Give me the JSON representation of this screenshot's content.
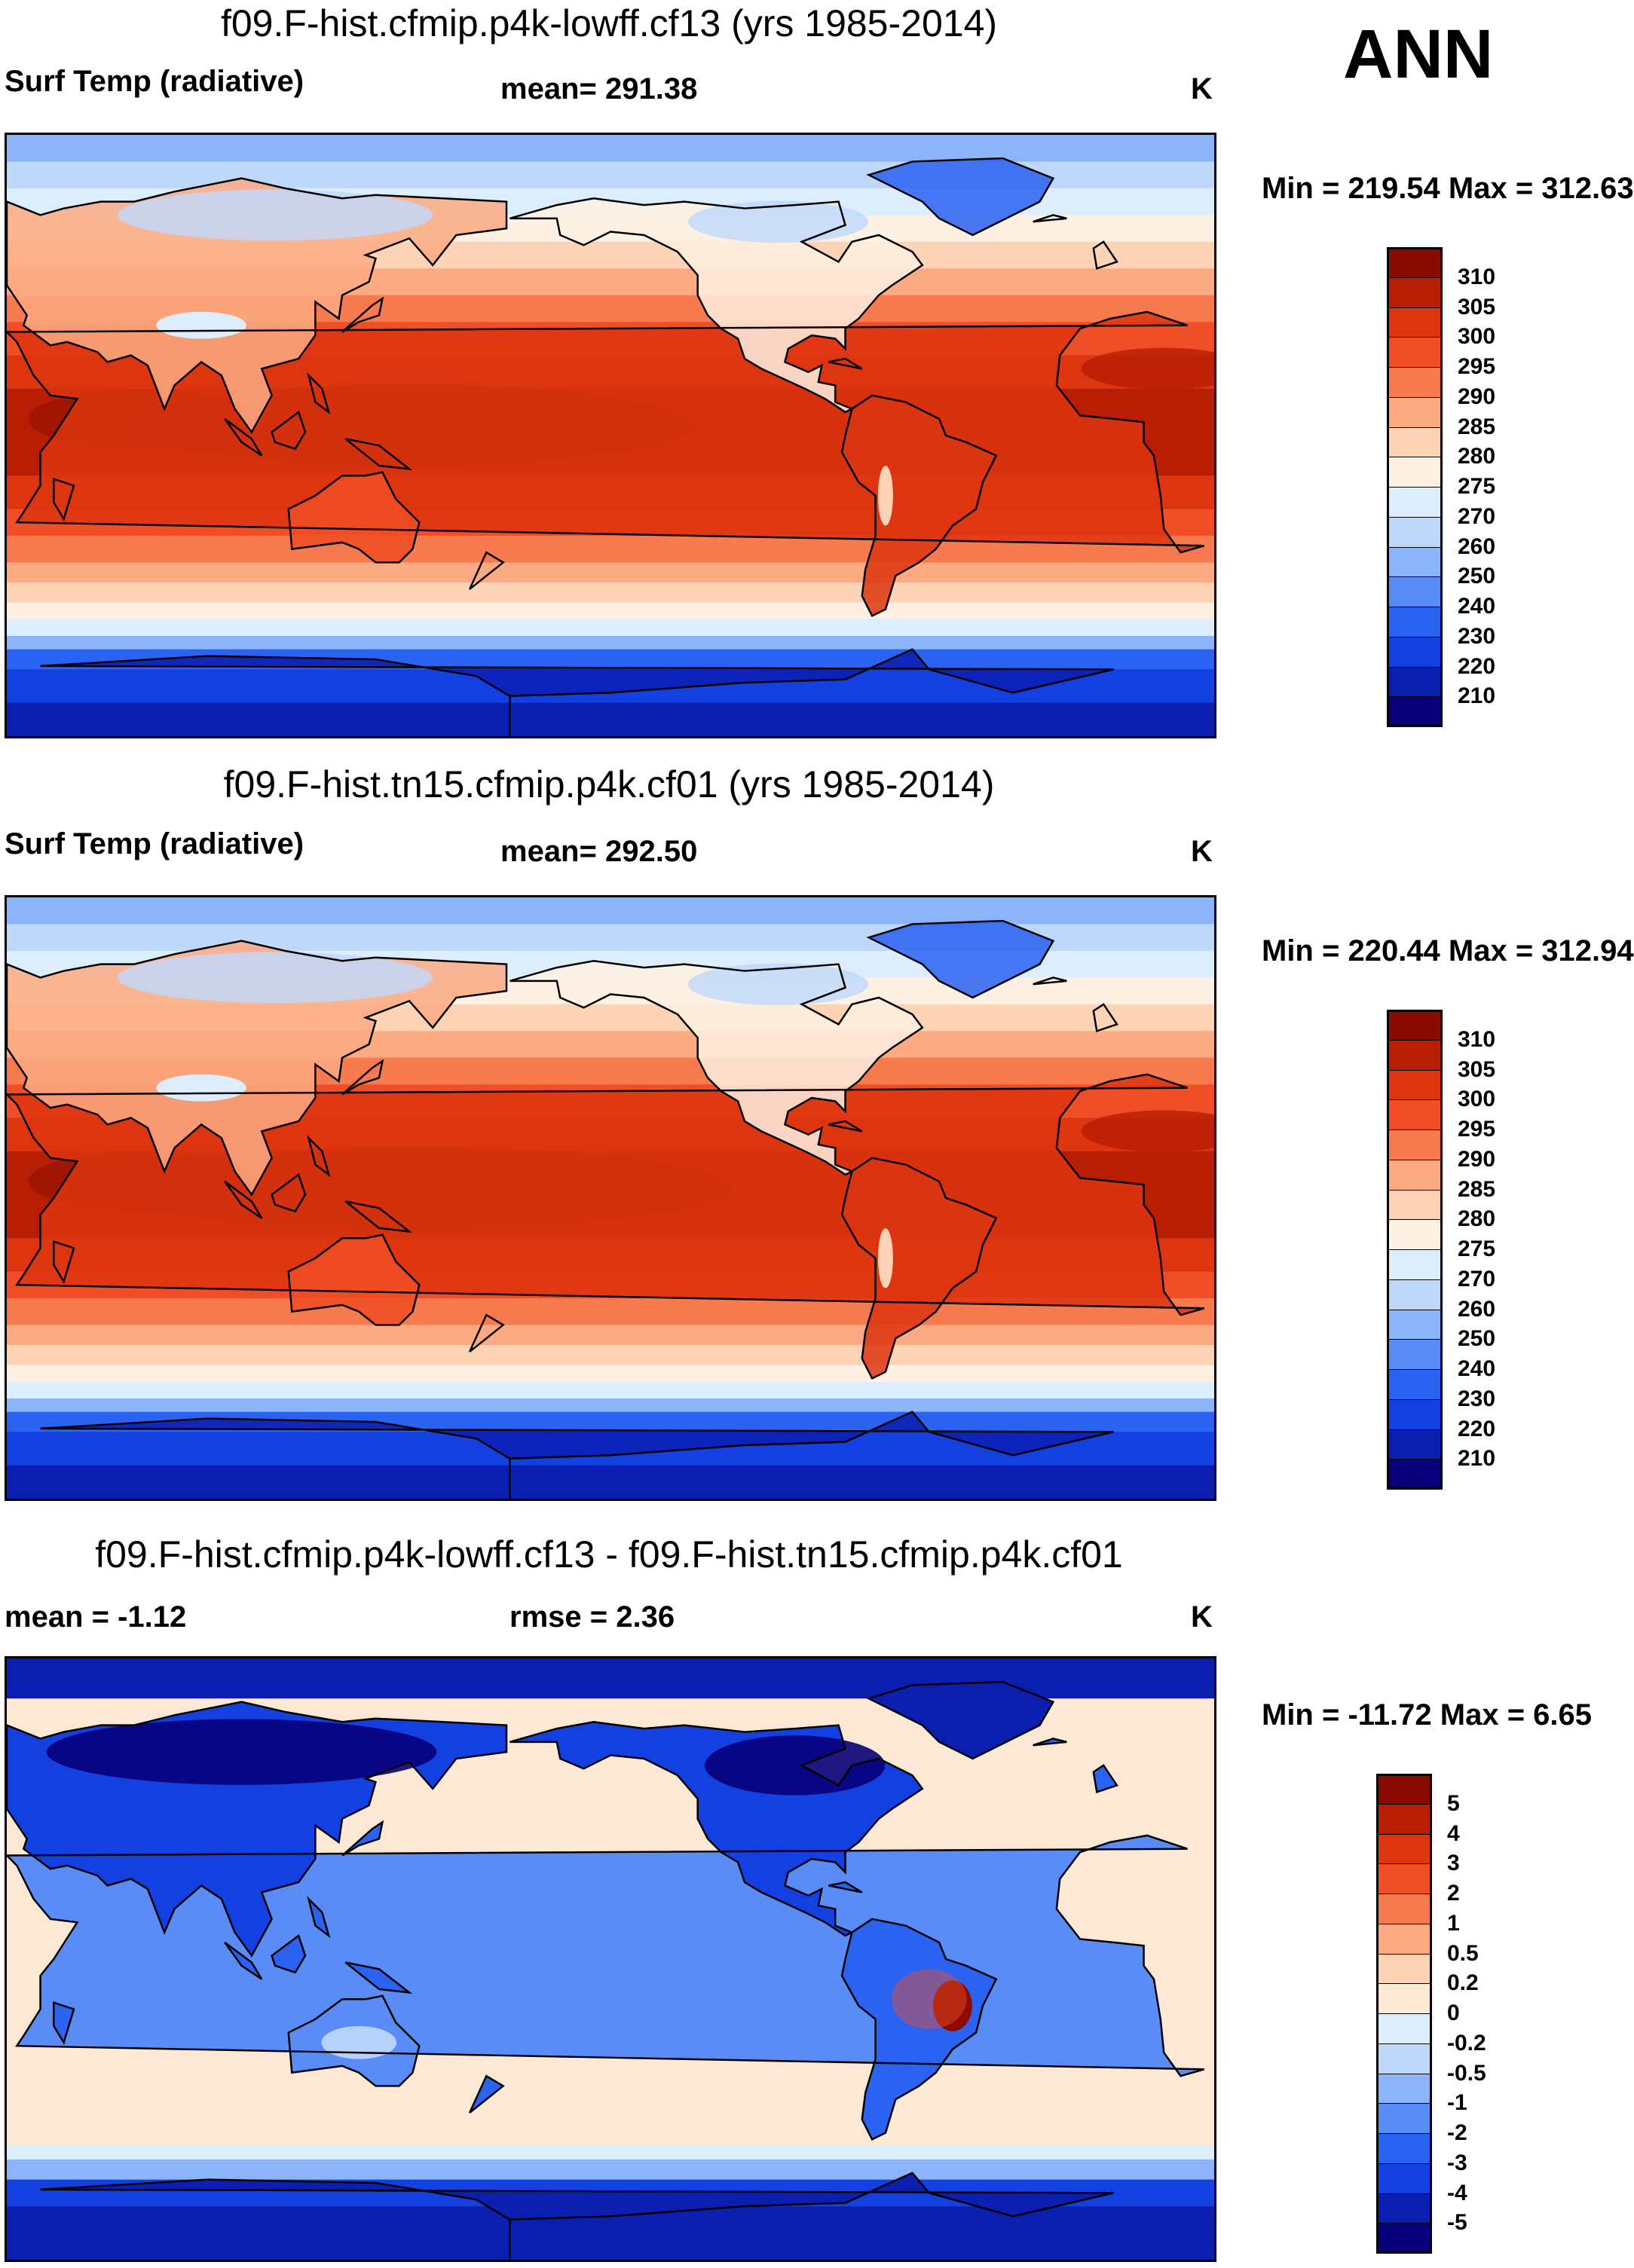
{
  "season": "ANN",
  "colors": {
    "abs": [
      "#08007a",
      "#0a1eb0",
      "#1340e0",
      "#2a62f2",
      "#5a8cf8",
      "#8cb4fa",
      "#bed8fc",
      "#dceefe",
      "#fef0e2",
      "#fdd3b6",
      "#fcaa82",
      "#f77b4e",
      "#f04e26",
      "#dc3510",
      "#b81e04",
      "#8a0c00"
    ],
    "diff": [
      "#08007a",
      "#0a1eb0",
      "#1340e0",
      "#2a62f2",
      "#5a8cf8",
      "#8cb4fa",
      "#bed8fc",
      "#dceefe",
      "#fde8d6",
      "#fdd3b6",
      "#fcaa82",
      "#f77b4e",
      "#f04e26",
      "#dc3510",
      "#b81e04",
      "#8a0c00"
    ]
  },
  "panels": [
    {
      "title": "f09.F-hist.cfmip.p4k-lowff.cf13 (yrs 1985-2014)",
      "left_label": "Surf Temp (radiative)",
      "stat_label": "mean= 291.38",
      "units": "K",
      "minmax": "Min = 219.54 Max = 312.63",
      "ticks": [
        "310",
        "305",
        "300",
        "295",
        "290",
        "285",
        "280",
        "275",
        "270",
        "260",
        "250",
        "240",
        "230",
        "220",
        "210"
      ]
    },
    {
      "title": "f09.F-hist.tn15.cfmip.p4k.cf01 (yrs 1985-2014)",
      "left_label": "Surf Temp (radiative)",
      "stat_label": "mean= 292.50",
      "units": "K",
      "minmax": "Min = 220.44 Max = 312.94",
      "ticks": [
        "310",
        "305",
        "300",
        "295",
        "290",
        "285",
        "280",
        "275",
        "270",
        "260",
        "250",
        "240",
        "230",
        "220",
        "210"
      ]
    },
    {
      "title": "f09.F-hist.cfmip.p4k-lowff.cf13 - f09.F-hist.tn15.cfmip.p4k.cf01",
      "left_label": "mean =  -1.12",
      "stat_label": "rmse =   2.36",
      "units": "K",
      "minmax": "Min = -11.72 Max =   6.65",
      "ticks": [
        "5",
        "4",
        "3",
        "2",
        "1",
        "0.5",
        "0.2",
        "0",
        "-0.2",
        "-0.5",
        "-1",
        "-2",
        "-3",
        "-4",
        "-5"
      ]
    }
  ],
  "chart_data": [
    {
      "type": "heatmap",
      "title": "f09.F-hist.cfmip.p4k-lowff.cf13 (yrs 1985-2014)",
      "variable": "Surf Temp (radiative)",
      "units": "K",
      "mean": 291.38,
      "min": 219.54,
      "max": 312.63,
      "levels": [
        210,
        220,
        230,
        240,
        250,
        260,
        270,
        275,
        280,
        285,
        290,
        295,
        300,
        305,
        310
      ]
    },
    {
      "type": "heatmap",
      "title": "f09.F-hist.tn15.cfmip.p4k.cf01 (yrs 1985-2014)",
      "variable": "Surf Temp (radiative)",
      "units": "K",
      "mean": 292.5,
      "min": 220.44,
      "max": 312.94,
      "levels": [
        210,
        220,
        230,
        240,
        250,
        260,
        270,
        275,
        280,
        285,
        290,
        295,
        300,
        305,
        310
      ]
    },
    {
      "type": "heatmap",
      "title": "f09.F-hist.cfmip.p4k-lowff.cf13 - f09.F-hist.tn15.cfmip.p4k.cf01",
      "units": "K",
      "mean": -1.12,
      "rmse": 2.36,
      "min": -11.72,
      "max": 6.65,
      "levels": [
        -5,
        -4,
        -3,
        -2,
        -1,
        -0.5,
        -0.2,
        0,
        0.2,
        0.5,
        1,
        2,
        3,
        4,
        5
      ]
    }
  ]
}
